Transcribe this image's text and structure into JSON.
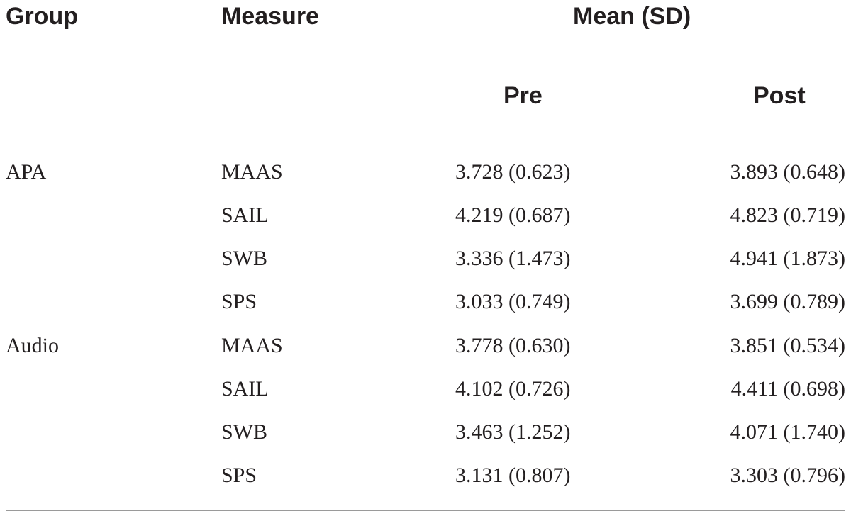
{
  "header": {
    "group": "Group",
    "measure": "Measure",
    "mean_sd": "Mean (SD)",
    "pre": "Pre",
    "post": "Post"
  },
  "rows": [
    {
      "group": "APA",
      "measure": "MAAS",
      "pre": "3.728 (0.623)",
      "post": "3.893 (0.648)"
    },
    {
      "group": "",
      "measure": "SAIL",
      "pre": "4.219 (0.687)",
      "post": "4.823 (0.719)"
    },
    {
      "group": "",
      "measure": "SWB",
      "pre": "3.336 (1.473)",
      "post": "4.941 (1.873)"
    },
    {
      "group": "",
      "measure": "SPS",
      "pre": "3.033 (0.749)",
      "post": "3.699 (0.789)"
    },
    {
      "group": "Audio",
      "measure": "MAAS",
      "pre": "3.778 (0.630)",
      "post": "3.851 (0.534)"
    },
    {
      "group": "",
      "measure": "SAIL",
      "pre": "4.102 (0.726)",
      "post": "4.411 (0.698)"
    },
    {
      "group": "",
      "measure": "SWB",
      "pre": "3.463 (1.252)",
      "post": "4.071 (1.740)"
    },
    {
      "group": "",
      "measure": "SPS",
      "pre": "3.131 (0.807)",
      "post": "3.303 (0.796)"
    }
  ]
}
